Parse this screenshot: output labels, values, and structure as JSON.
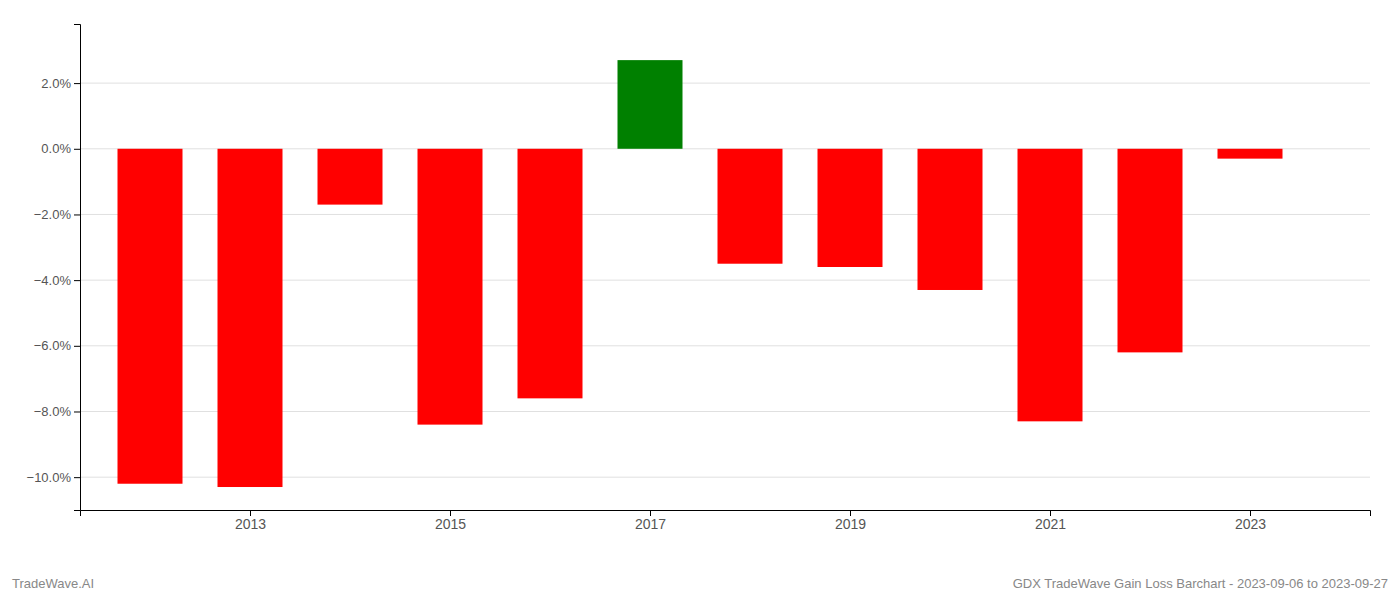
{
  "chart_data": {
    "type": "bar",
    "x": [
      2012,
      2013,
      2014,
      2015,
      2016,
      2017,
      2018,
      2019,
      2020,
      2021,
      2022,
      2023
    ],
    "values": [
      -10.2,
      -10.3,
      -1.7,
      -8.4,
      -7.6,
      2.7,
      -3.5,
      -3.6,
      -4.3,
      -8.3,
      -6.2,
      -0.3
    ],
    "colors": [
      "#ff0000",
      "#ff0000",
      "#ff0000",
      "#ff0000",
      "#ff0000",
      "#008000",
      "#ff0000",
      "#ff0000",
      "#ff0000",
      "#ff0000",
      "#ff0000",
      "#ff0000"
    ],
    "xlim": [
      2011.3,
      2024.2
    ],
    "xticks": [
      2013,
      2015,
      2017,
      2019,
      2021,
      2023
    ],
    "ylim": [
      -11.0,
      3.8
    ],
    "yticks": [
      {
        "value": -10.0,
        "label": "−10.0%"
      },
      {
        "value": -8.0,
        "label": "−8.0%"
      },
      {
        "value": -6.0,
        "label": "−6.0%"
      },
      {
        "value": -4.0,
        "label": "−4.0%"
      },
      {
        "value": -2.0,
        "label": "−2.0%"
      },
      {
        "value": 0.0,
        "label": "0.0%"
      },
      {
        "value": 2.0,
        "label": "2.0%"
      }
    ],
    "grid": true,
    "annotations": [
      "TradeWave.AI",
      "GDX TradeWave Gain Loss Barchart - 2023-09-06 to 2023-09-27"
    ]
  }
}
